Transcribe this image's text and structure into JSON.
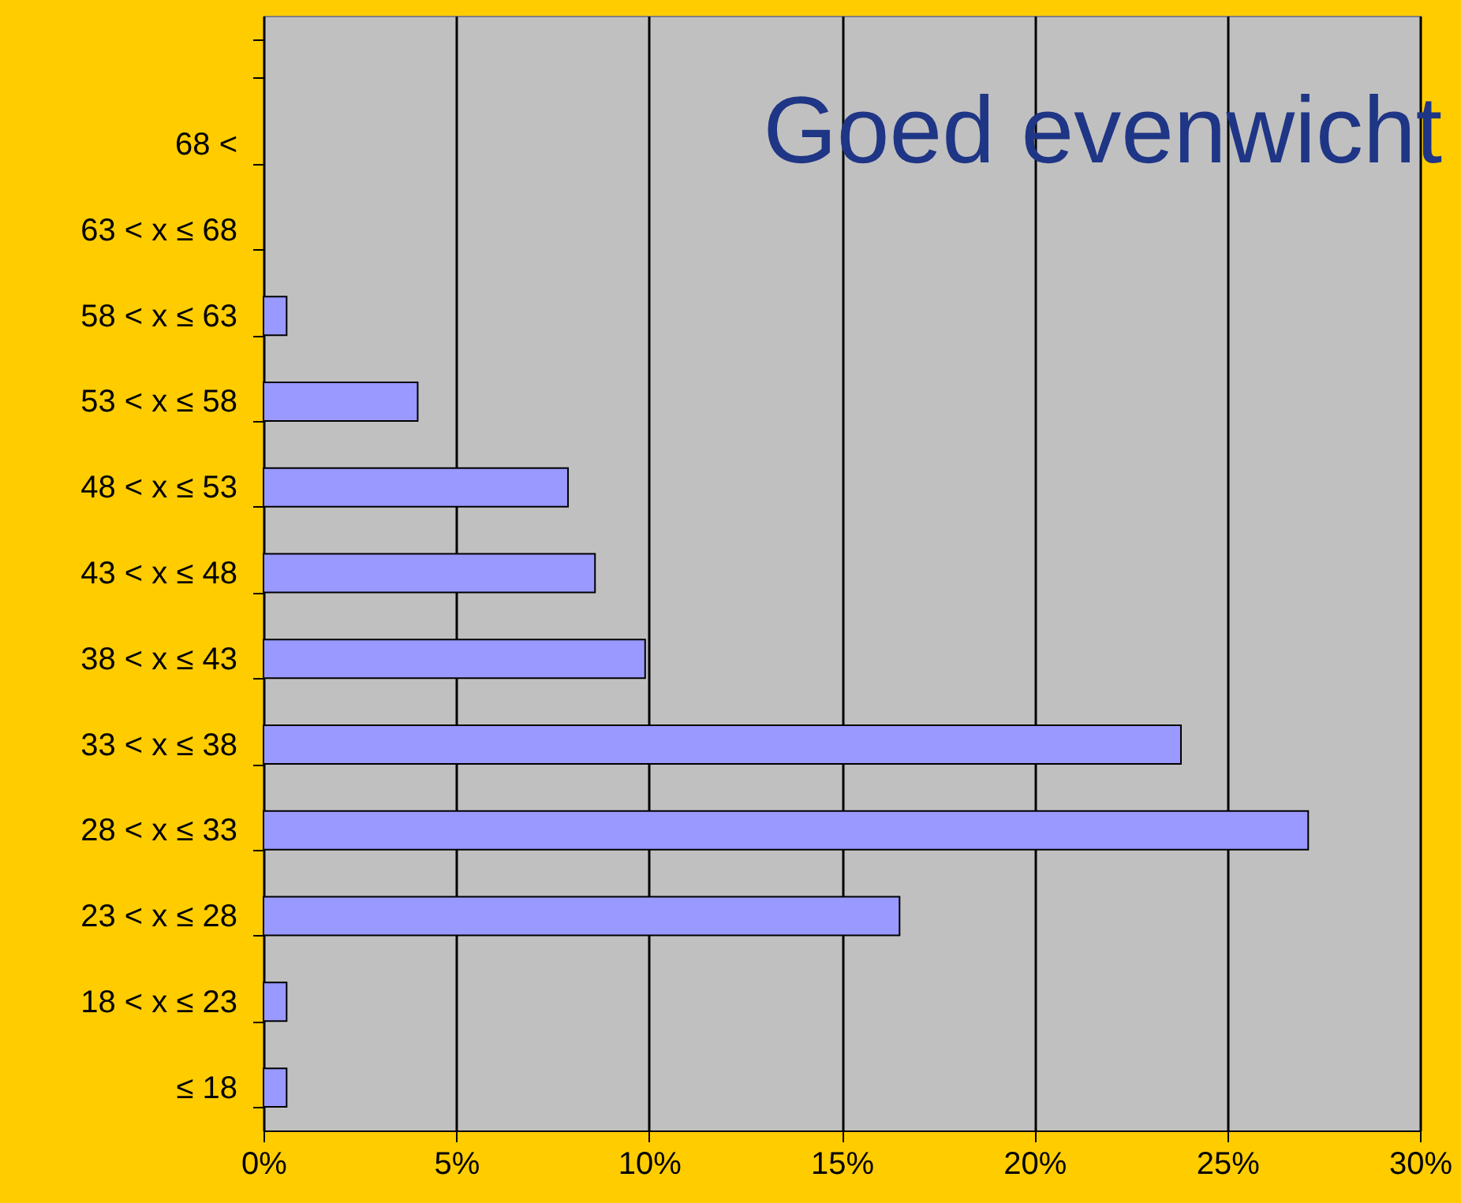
{
  "chart_data": {
    "type": "bar",
    "orientation": "horizontal",
    "title": "Goed evenwicht",
    "categories": [
      null,
      "68 <",
      "63 < x ≤ 68",
      "58 < x ≤ 63",
      "53 < x ≤ 58",
      "48 < x ≤ 53",
      "43 < x ≤ 48",
      "38 < x ≤ 43",
      "33 < x ≤ 38",
      "28 < x ≤ 33",
      "23 < x ≤ 28",
      "18 < x ≤ 23",
      "≤ 18"
    ],
    "values": [
      null,
      0,
      0,
      0.6,
      4.0,
      7.9,
      8.6,
      9.9,
      23.8,
      27.1,
      16.5,
      0.6,
      0.6
    ],
    "color": "#9999ff",
    "xlim": [
      0,
      30
    ],
    "xticks": [
      {
        "value": 0,
        "label": "0%"
      },
      {
        "value": 5,
        "label": "5%"
      },
      {
        "value": 10,
        "label": "10%"
      },
      {
        "value": 15,
        "label": "15%"
      },
      {
        "value": 20,
        "label": "20%"
      },
      {
        "value": 25,
        "label": "25%"
      },
      {
        "value": 30,
        "label": "30%"
      }
    ],
    "grid": "x"
  }
}
